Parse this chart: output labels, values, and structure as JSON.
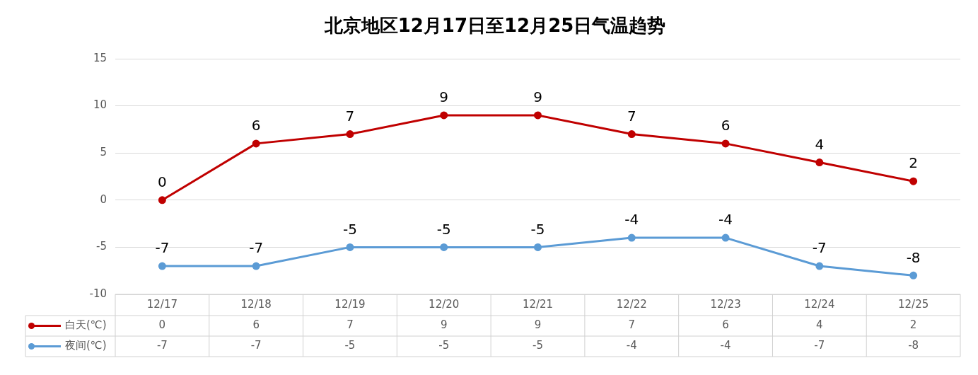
{
  "chart_data": {
    "type": "line",
    "title": "北京地区12月17日至12月25日气温趋势",
    "categories": [
      "12/17",
      "12/18",
      "12/19",
      "12/20",
      "12/21",
      "12/22",
      "12/23",
      "12/24",
      "12/25"
    ],
    "series": [
      {
        "name": "白天(℃)",
        "color": "#c00000",
        "values": [
          0,
          6,
          7,
          9,
          9,
          7,
          6,
          4,
          2
        ],
        "value_labels": [
          "0",
          "6",
          "7",
          "9",
          "9",
          "7",
          "6",
          "4",
          "2"
        ]
      },
      {
        "name": "夜间(℃)",
        "color": "#5b9bd5",
        "values": [
          -7,
          -7,
          -5,
          -5,
          -5,
          -4,
          -4,
          -7,
          -8
        ],
        "value_labels": [
          "-7",
          "-7",
          "-5",
          "-5",
          "-5",
          "-4",
          "-4",
          "-7",
          "-8"
        ]
      }
    ],
    "annotations": [
      "0",
      "6",
      "7",
      "9",
      "9",
      "7",
      "6",
      "4",
      "2",
      "-7",
      "-7",
      "-5",
      "-5",
      "-5",
      "-4",
      "-4",
      "-7",
      "-8"
    ],
    "ylim": [
      -10,
      15
    ],
    "yticks": [
      -10,
      -5,
      0,
      5,
      10,
      15
    ],
    "grid": "y",
    "legend": "bottom",
    "marker": "circle",
    "line_style": "solid"
  }
}
